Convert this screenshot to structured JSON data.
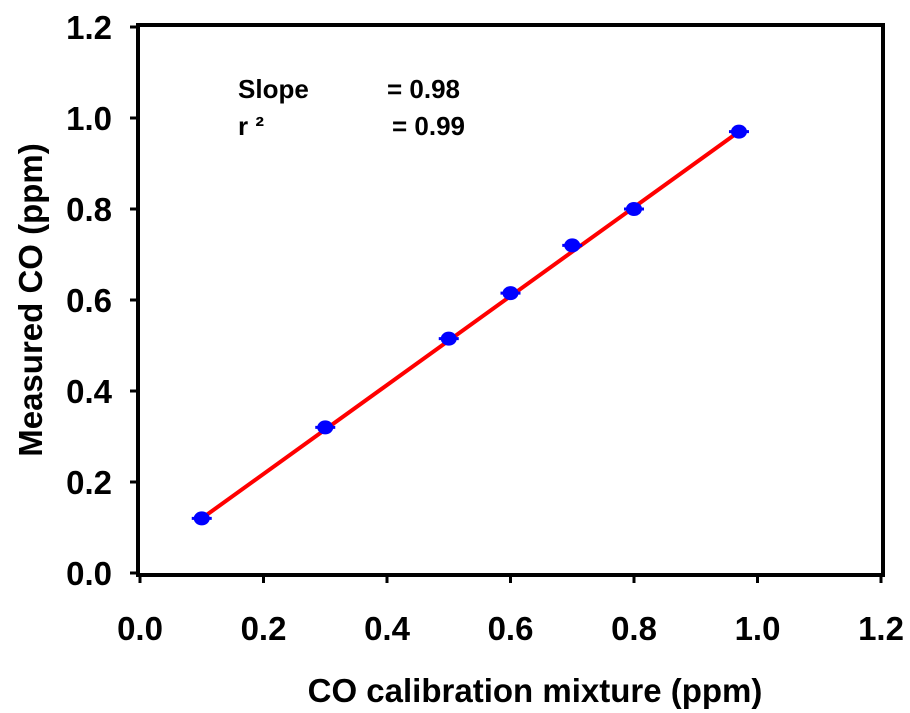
{
  "chart_data": {
    "type": "scatter",
    "title": "",
    "xlabel": "CO calibration mixture (ppm)",
    "ylabel": "Measured CO (ppm)",
    "xlim": [
      0.0,
      1.2
    ],
    "ylim": [
      0.0,
      1.2
    ],
    "x_ticks": [
      "0.0",
      "0.2",
      "0.4",
      "0.6",
      "0.8",
      "1.0",
      "1.2"
    ],
    "y_ticks": [
      "0.0",
      "0.2",
      "0.4",
      "0.6",
      "0.8",
      "1.0",
      "1.2"
    ],
    "grid": false,
    "legend": "none",
    "series": [
      {
        "marker_color": "#0000ff",
        "points": [
          {
            "x": 0.1,
            "y": 0.12
          },
          {
            "x": 0.3,
            "y": 0.32
          },
          {
            "x": 0.5,
            "y": 0.515
          },
          {
            "x": 0.6,
            "y": 0.615
          },
          {
            "x": 0.7,
            "y": 0.72
          },
          {
            "x": 0.8,
            "y": 0.8
          },
          {
            "x": 0.97,
            "y": 0.97
          }
        ]
      }
    ],
    "fit_line": {
      "color": "#ff0000",
      "x": [
        0.1,
        0.97
      ],
      "y": [
        0.12,
        0.97
      ]
    },
    "annotations": {
      "slope_label": "Slope",
      "slope_value": "=  0.98",
      "r2_label": "r ²",
      "r2_value": "=  0.99"
    }
  }
}
